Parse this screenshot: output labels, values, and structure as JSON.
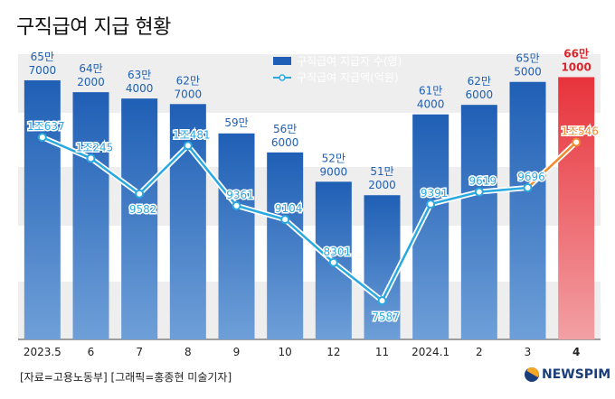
{
  "title": "구직급여 지급 현황",
  "source": "[자료=고용노동부] [그래픽=홍종현 미술기자]",
  "logo": "NEWSPIM",
  "colors": {
    "bar": "#1f5fb5",
    "bar_highlight": "#e8333b",
    "line": "#2aa8e0",
    "line_highlight": "#f08a2c",
    "label_bar": "#1f5fb5",
    "label_bar_highlight": "#d9262c"
  },
  "chart_data": {
    "type": "bar",
    "categories": [
      "2023.5",
      "6",
      "7",
      "8",
      "9",
      "10",
      "12",
      "11",
      "2024.1",
      "2",
      "3",
      "4"
    ],
    "series": [
      {
        "name": "구직급여 지급자 수(명)",
        "type": "bar",
        "values": [
          657000,
          642000,
          634000,
          627000,
          590000,
          566000,
          529000,
          512000,
          614000,
          626000,
          655000,
          661000
        ],
        "labels": [
          [
            "65만",
            "7000"
          ],
          [
            "64만",
            "2000"
          ],
          [
            "63만",
            "4000"
          ],
          [
            "62만",
            "7000"
          ],
          [
            "59만",
            ""
          ],
          [
            "56만",
            "6000"
          ],
          [
            "52만",
            "9000"
          ],
          [
            "51만",
            "2000"
          ],
          [
            "61만",
            "4000"
          ],
          [
            "62만",
            "6000"
          ],
          [
            "65만",
            "5000"
          ],
          [
            "66만",
            "1000"
          ]
        ]
      },
      {
        "name": "구직급여 지급액(억원)",
        "type": "line",
        "values": [
          10637,
          10245,
          9582,
          10481,
          9361,
          9104,
          8301,
          7587,
          9391,
          9619,
          9696,
          10546
        ],
        "labels": [
          "1조637",
          "1조245",
          "9582",
          "1조481",
          "9361",
          "9104",
          "8301",
          "7587",
          "9391",
          "9619",
          "9696",
          "1조546"
        ]
      }
    ],
    "legend": "top-center",
    "highlight_last": true
  }
}
